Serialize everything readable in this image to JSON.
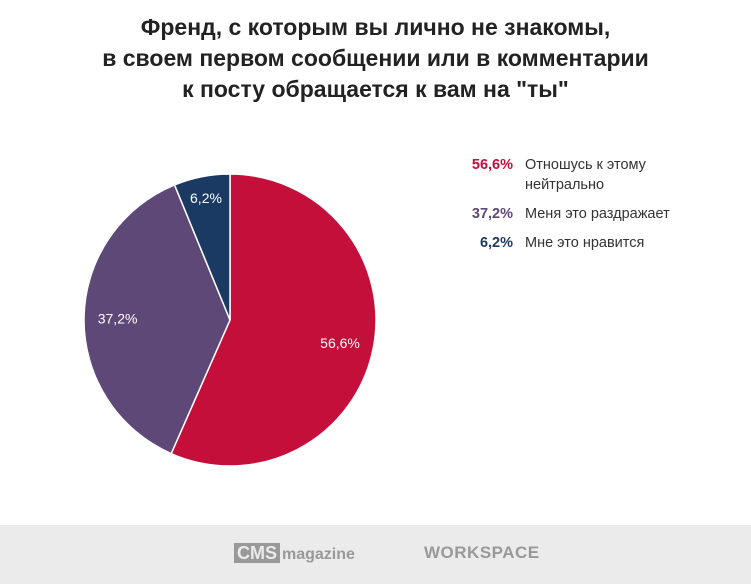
{
  "chart_data": {
    "type": "pie",
    "title": [
      "Френд, с которым вы лично не знакомы,",
      "в своем первом сообщении или в комментарии",
      "к посту обращается к вам на \"ты\""
    ],
    "slices": [
      {
        "label": "Отношусь к этому нейтрально",
        "value": 56.6,
        "display": "56,6%",
        "color": "#c30f3a"
      },
      {
        "label": "Меня это раздражает",
        "value": 37.2,
        "display": "37,2%",
        "color": "#5e4877"
      },
      {
        "label": "Мне это нравится",
        "value": 6.2,
        "display": "6,2%",
        "color": "#1b3a63"
      }
    ],
    "legend_position": "right"
  },
  "footer": {
    "logo1_box": "CMS",
    "logo1_text": "magazine",
    "logo2": "WORKSPACE"
  }
}
